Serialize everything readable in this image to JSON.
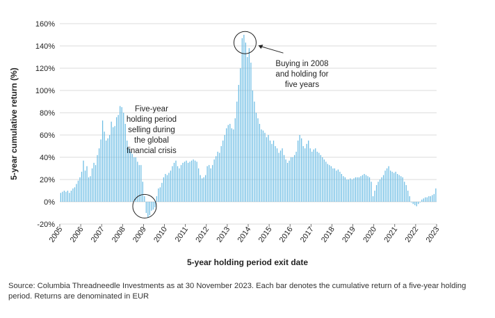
{
  "chart_data": {
    "type": "bar",
    "xlabel": "5-year holding period exit date",
    "ylabel": "5-year cumulative return (%)",
    "ylim": [
      -20,
      160
    ],
    "yticks": [
      -20,
      0,
      20,
      40,
      60,
      80,
      100,
      120,
      140,
      160
    ],
    "ytick_labels": [
      "-20%",
      "0%",
      "20%",
      "40%",
      "60%",
      "80%",
      "100%",
      "120%",
      "140%",
      "160%"
    ],
    "xticks": [
      "2005",
      "2006",
      "2007",
      "2008",
      "2009",
      "2010",
      "2011",
      "2012",
      "2013",
      "2014",
      "2015",
      "2016",
      "2017",
      "2018",
      "2019",
      "2020",
      "2021",
      "2022",
      "2023"
    ],
    "x_start": "2005-01",
    "grid": true,
    "bar_color": "#6bbce4",
    "annotations": [
      {
        "text_lines": [
          "Five-year",
          "holding period",
          "selling during",
          "the global",
          "financial crisis"
        ],
        "x": 2009.05,
        "y": -4
      },
      {
        "text_lines": [
          "Buying in 2008",
          "and holding for",
          "five years"
        ],
        "x": 2013.85,
        "y": 143
      }
    ],
    "series": [
      {
        "values": [
          8,
          9,
          10,
          9,
          10,
          8,
          10,
          12,
          13,
          16,
          19,
          22,
          27,
          37,
          28,
          32,
          22,
          23,
          30,
          35,
          33,
          42,
          48,
          56,
          73,
          63,
          55,
          57,
          60,
          72,
          67,
          68,
          76,
          78,
          86,
          85,
          80,
          70,
          55,
          48,
          45,
          43,
          40,
          40,
          36,
          33,
          33,
          18,
          5,
          -10,
          -14,
          -12,
          -8,
          -7,
          -5,
          5,
          12,
          13,
          17,
          22,
          25,
          24,
          26,
          28,
          32,
          35,
          37,
          32,
          30,
          33,
          35,
          36,
          37,
          35,
          36,
          37,
          38,
          37,
          36,
          30,
          24,
          21,
          22,
          24,
          32,
          33,
          30,
          33,
          38,
          41,
          45,
          44,
          50,
          55,
          60,
          66,
          69,
          70,
          66,
          65,
          75,
          90,
          105,
          120,
          147,
          150,
          143,
          130,
          138,
          125,
          100,
          90,
          80,
          75,
          70,
          65,
          64,
          62,
          58,
          60,
          55,
          52,
          55,
          50,
          48,
          44,
          46,
          48,
          42,
          38,
          35,
          37,
          40,
          40,
          42,
          45,
          55,
          60,
          57,
          50,
          48,
          52,
          55,
          48,
          45,
          47,
          48,
          45,
          44,
          42,
          40,
          38,
          36,
          34,
          33,
          32,
          30,
          30,
          28,
          29,
          27,
          25,
          23,
          22,
          20,
          20,
          21,
          20,
          21,
          22,
          22,
          22,
          23,
          24,
          25,
          24,
          23,
          22,
          18,
          5,
          10,
          15,
          18,
          20,
          22,
          24,
          28,
          30,
          32,
          28,
          27,
          26,
          27,
          25,
          24,
          23,
          22,
          18,
          15,
          10,
          5,
          0,
          -2,
          -3,
          -4,
          -2,
          0,
          2,
          3,
          4,
          4,
          5,
          5,
          6,
          7,
          12
        ]
      }
    ]
  },
  "source_note": "Source: Columbia Threadneedle Investments as at 30 November 2023. Each bar denotes the cumulative return of a five-year holding period. Returns are denominated in EUR"
}
